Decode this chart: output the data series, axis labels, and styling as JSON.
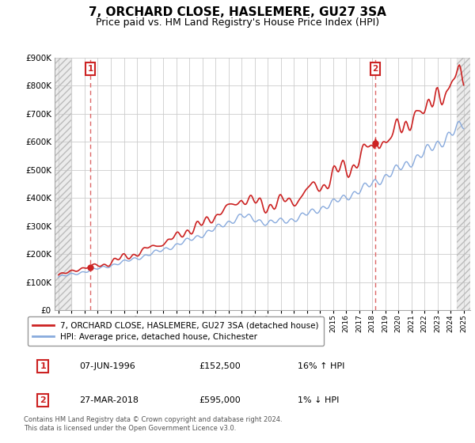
{
  "title": "7, ORCHARD CLOSE, HASLEMERE, GU27 3SA",
  "subtitle": "Price paid vs. HM Land Registry's House Price Index (HPI)",
  "title_fontsize": 11,
  "subtitle_fontsize": 9,
  "ylabel_ticks": [
    "£0",
    "£100K",
    "£200K",
    "£300K",
    "£400K",
    "£500K",
    "£600K",
    "£700K",
    "£800K",
    "£900K"
  ],
  "ytick_vals": [
    0,
    100000,
    200000,
    300000,
    400000,
    500000,
    600000,
    700000,
    800000,
    900000
  ],
  "ylim": [
    0,
    900000
  ],
  "xlim_start": 1993.7,
  "xlim_end": 2025.5,
  "sale1_date": "07-JUN-1996",
  "sale1_price": 152500,
  "sale1_label": "1",
  "sale1_hpi_pct": "16% ↑ HPI",
  "sale2_date": "27-MAR-2018",
  "sale2_price": 595000,
  "sale2_label": "2",
  "sale2_hpi_pct": "1% ↓ HPI",
  "legend_line1": "7, ORCHARD CLOSE, HASLEMERE, GU27 3SA (detached house)",
  "legend_line2": "HPI: Average price, detached house, Chichester",
  "footer": "Contains HM Land Registry data © Crown copyright and database right 2024.\nThis data is licensed under the Open Government Licence v3.0.",
  "price_color": "#cc2222",
  "hpi_color": "#88aadd",
  "marker_color": "#cc2222",
  "vline_color": "#dd6666",
  "grid_color": "#cccccc",
  "x_sale1": 1996.44,
  "x_sale2": 2018.23,
  "box_color": "#cc2222",
  "hatch_color": "#cccccc"
}
